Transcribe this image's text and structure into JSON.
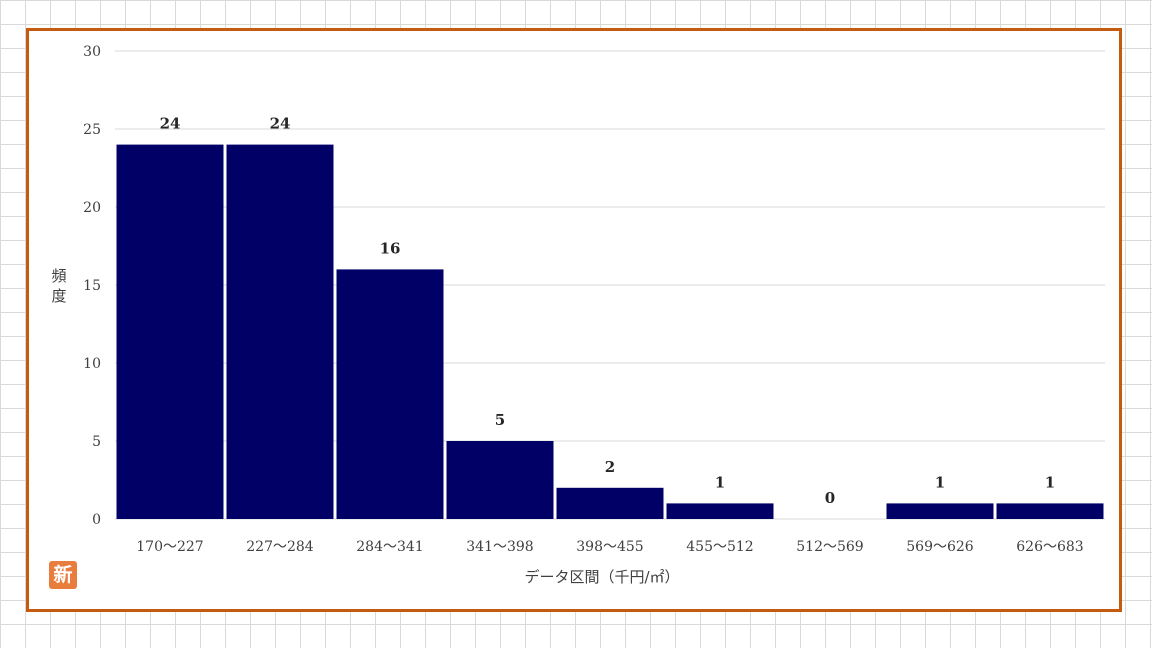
{
  "chart_data": {
    "type": "bar",
    "title": "",
    "xlabel": "データ区間（千円/㎡）",
    "ylabel": "頻度",
    "categories": [
      "170～227",
      "227～284",
      "284～341",
      "341～398",
      "398～455",
      "455～512",
      "512～569",
      "569～626",
      "626～683"
    ],
    "values": [
      24,
      24,
      16,
      5,
      2,
      1,
      0,
      1,
      1
    ],
    "ylim": [
      0,
      30
    ],
    "yticks": [
      0,
      5,
      10,
      15,
      20,
      25,
      30
    ],
    "grid": true,
    "legend": "none",
    "bar_color": "#000066",
    "gridline_color": "#d9d9d9"
  },
  "frame_color": "#c55a11",
  "badge": {
    "text": "新",
    "color": "#e87d3e"
  }
}
